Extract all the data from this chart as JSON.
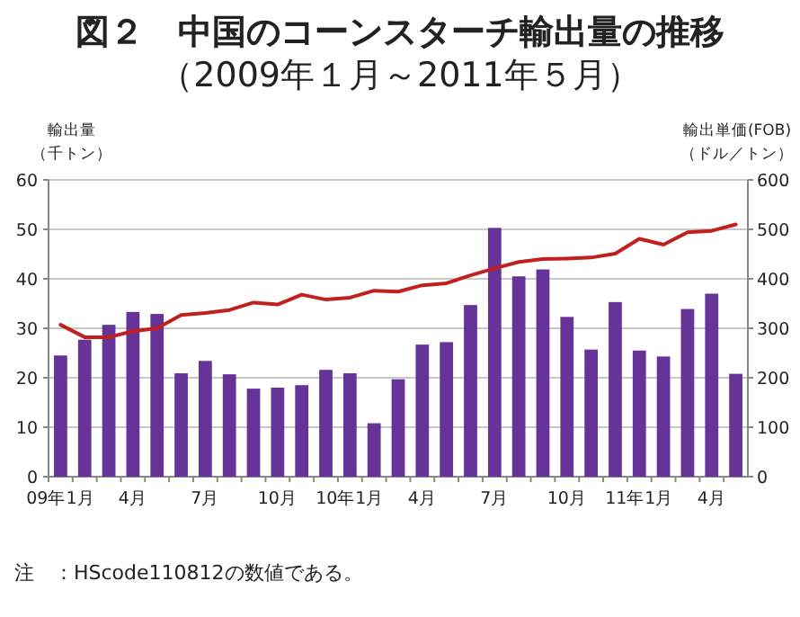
{
  "chart_data": {
    "type": "bar",
    "title": "図２　中国のコーンスターチ輸出量の推移",
    "subtitle": "（2009年１月～2011年５月）",
    "ylabel": "輸出量（千トン）",
    "y2label": "輸出単価(FOB)（ドル／トン）",
    "categories": [
      "09年1月",
      null,
      null,
      "4月",
      null,
      null,
      "7月",
      null,
      null,
      "10月",
      null,
      null,
      "10年1月",
      null,
      null,
      "4月",
      null,
      null,
      "7月",
      null,
      null,
      "10月",
      null,
      null,
      "11年1月",
      null,
      null,
      "4月",
      null
    ],
    "series": [
      {
        "color": "#663399",
        "values": [
          24.5,
          27.7,
          30.7,
          33.3,
          32.9,
          20.9,
          23.4,
          20.7,
          17.8,
          18.0,
          18.5,
          21.6,
          20.9,
          10.8,
          19.7,
          26.7,
          27.2,
          34.7,
          50.3,
          40.5,
          41.9,
          32.3,
          25.7,
          35.3,
          25.5,
          24.3,
          33.9,
          37.0,
          20.8
        ]
      },
      {
        "type": "line",
        "axis": "y2",
        "color": "#c0201e",
        "values": [
          307,
          282,
          282,
          294,
          300,
          327,
          331,
          337,
          352,
          348,
          368,
          358,
          362,
          376,
          374,
          387,
          391,
          407,
          421,
          434,
          440,
          441,
          443,
          451,
          481,
          469,
          494,
          497,
          510
        ]
      }
    ],
    "ylim": [
      0,
      60
    ],
    "yticks": [
      0,
      10,
      20,
      30,
      40,
      50,
      60
    ],
    "y2lim": [
      0,
      600
    ],
    "y2ticks": [
      0,
      100,
      200,
      300,
      400,
      500,
      600
    ],
    "grid": "y",
    "annotations": [
      "注　：HScode110812の数値である。"
    ]
  }
}
